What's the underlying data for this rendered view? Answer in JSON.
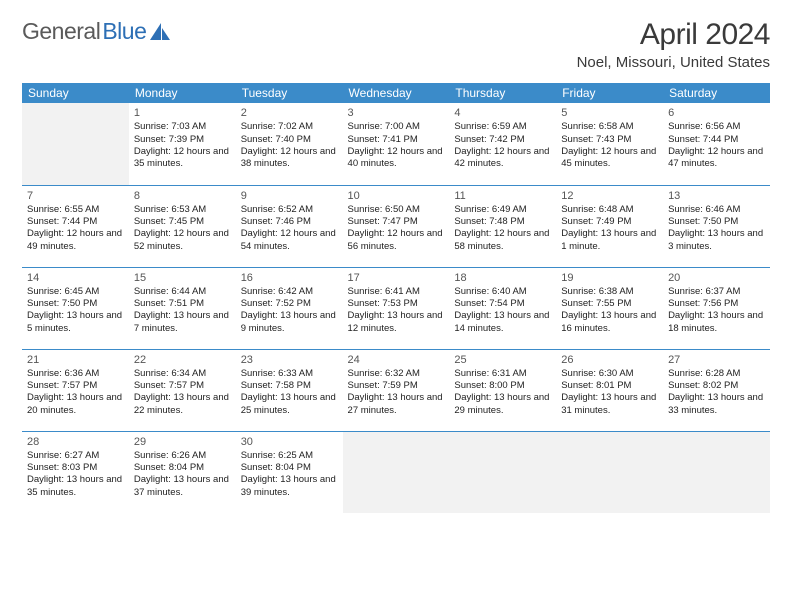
{
  "logo": {
    "text1": "General",
    "text2": "Blue"
  },
  "title": "April 2024",
  "location": "Noel, Missouri, United States",
  "weekdays": [
    "Sunday",
    "Monday",
    "Tuesday",
    "Wednesday",
    "Thursday",
    "Friday",
    "Saturday"
  ],
  "colors": {
    "header_bg": "#3b8bc9",
    "header_fg": "#ffffff",
    "rule": "#3b8bc9",
    "empty_bg": "#f2f2f2",
    "logo_gray": "#5a5a5a",
    "logo_blue": "#2d6fb5"
  },
  "weeks": [
    [
      {
        "empty": true
      },
      {
        "day": "1",
        "sunrise": "Sunrise: 7:03 AM",
        "sunset": "Sunset: 7:39 PM",
        "daylight": "Daylight: 12 hours and 35 minutes."
      },
      {
        "day": "2",
        "sunrise": "Sunrise: 7:02 AM",
        "sunset": "Sunset: 7:40 PM",
        "daylight": "Daylight: 12 hours and 38 minutes."
      },
      {
        "day": "3",
        "sunrise": "Sunrise: 7:00 AM",
        "sunset": "Sunset: 7:41 PM",
        "daylight": "Daylight: 12 hours and 40 minutes."
      },
      {
        "day": "4",
        "sunrise": "Sunrise: 6:59 AM",
        "sunset": "Sunset: 7:42 PM",
        "daylight": "Daylight: 12 hours and 42 minutes."
      },
      {
        "day": "5",
        "sunrise": "Sunrise: 6:58 AM",
        "sunset": "Sunset: 7:43 PM",
        "daylight": "Daylight: 12 hours and 45 minutes."
      },
      {
        "day": "6",
        "sunrise": "Sunrise: 6:56 AM",
        "sunset": "Sunset: 7:44 PM",
        "daylight": "Daylight: 12 hours and 47 minutes."
      }
    ],
    [
      {
        "day": "7",
        "sunrise": "Sunrise: 6:55 AM",
        "sunset": "Sunset: 7:44 PM",
        "daylight": "Daylight: 12 hours and 49 minutes."
      },
      {
        "day": "8",
        "sunrise": "Sunrise: 6:53 AM",
        "sunset": "Sunset: 7:45 PM",
        "daylight": "Daylight: 12 hours and 52 minutes."
      },
      {
        "day": "9",
        "sunrise": "Sunrise: 6:52 AM",
        "sunset": "Sunset: 7:46 PM",
        "daylight": "Daylight: 12 hours and 54 minutes."
      },
      {
        "day": "10",
        "sunrise": "Sunrise: 6:50 AM",
        "sunset": "Sunset: 7:47 PM",
        "daylight": "Daylight: 12 hours and 56 minutes."
      },
      {
        "day": "11",
        "sunrise": "Sunrise: 6:49 AM",
        "sunset": "Sunset: 7:48 PM",
        "daylight": "Daylight: 12 hours and 58 minutes."
      },
      {
        "day": "12",
        "sunrise": "Sunrise: 6:48 AM",
        "sunset": "Sunset: 7:49 PM",
        "daylight": "Daylight: 13 hours and 1 minute."
      },
      {
        "day": "13",
        "sunrise": "Sunrise: 6:46 AM",
        "sunset": "Sunset: 7:50 PM",
        "daylight": "Daylight: 13 hours and 3 minutes."
      }
    ],
    [
      {
        "day": "14",
        "sunrise": "Sunrise: 6:45 AM",
        "sunset": "Sunset: 7:50 PM",
        "daylight": "Daylight: 13 hours and 5 minutes."
      },
      {
        "day": "15",
        "sunrise": "Sunrise: 6:44 AM",
        "sunset": "Sunset: 7:51 PM",
        "daylight": "Daylight: 13 hours and 7 minutes."
      },
      {
        "day": "16",
        "sunrise": "Sunrise: 6:42 AM",
        "sunset": "Sunset: 7:52 PM",
        "daylight": "Daylight: 13 hours and 9 minutes."
      },
      {
        "day": "17",
        "sunrise": "Sunrise: 6:41 AM",
        "sunset": "Sunset: 7:53 PM",
        "daylight": "Daylight: 13 hours and 12 minutes."
      },
      {
        "day": "18",
        "sunrise": "Sunrise: 6:40 AM",
        "sunset": "Sunset: 7:54 PM",
        "daylight": "Daylight: 13 hours and 14 minutes."
      },
      {
        "day": "19",
        "sunrise": "Sunrise: 6:38 AM",
        "sunset": "Sunset: 7:55 PM",
        "daylight": "Daylight: 13 hours and 16 minutes."
      },
      {
        "day": "20",
        "sunrise": "Sunrise: 6:37 AM",
        "sunset": "Sunset: 7:56 PM",
        "daylight": "Daylight: 13 hours and 18 minutes."
      }
    ],
    [
      {
        "day": "21",
        "sunrise": "Sunrise: 6:36 AM",
        "sunset": "Sunset: 7:57 PM",
        "daylight": "Daylight: 13 hours and 20 minutes."
      },
      {
        "day": "22",
        "sunrise": "Sunrise: 6:34 AM",
        "sunset": "Sunset: 7:57 PM",
        "daylight": "Daylight: 13 hours and 22 minutes."
      },
      {
        "day": "23",
        "sunrise": "Sunrise: 6:33 AM",
        "sunset": "Sunset: 7:58 PM",
        "daylight": "Daylight: 13 hours and 25 minutes."
      },
      {
        "day": "24",
        "sunrise": "Sunrise: 6:32 AM",
        "sunset": "Sunset: 7:59 PM",
        "daylight": "Daylight: 13 hours and 27 minutes."
      },
      {
        "day": "25",
        "sunrise": "Sunrise: 6:31 AM",
        "sunset": "Sunset: 8:00 PM",
        "daylight": "Daylight: 13 hours and 29 minutes."
      },
      {
        "day": "26",
        "sunrise": "Sunrise: 6:30 AM",
        "sunset": "Sunset: 8:01 PM",
        "daylight": "Daylight: 13 hours and 31 minutes."
      },
      {
        "day": "27",
        "sunrise": "Sunrise: 6:28 AM",
        "sunset": "Sunset: 8:02 PM",
        "daylight": "Daylight: 13 hours and 33 minutes."
      }
    ],
    [
      {
        "day": "28",
        "sunrise": "Sunrise: 6:27 AM",
        "sunset": "Sunset: 8:03 PM",
        "daylight": "Daylight: 13 hours and 35 minutes."
      },
      {
        "day": "29",
        "sunrise": "Sunrise: 6:26 AM",
        "sunset": "Sunset: 8:04 PM",
        "daylight": "Daylight: 13 hours and 37 minutes."
      },
      {
        "day": "30",
        "sunrise": "Sunrise: 6:25 AM",
        "sunset": "Sunset: 8:04 PM",
        "daylight": "Daylight: 13 hours and 39 minutes."
      },
      {
        "empty": true
      },
      {
        "empty": true
      },
      {
        "empty": true
      },
      {
        "empty": true
      }
    ]
  ]
}
